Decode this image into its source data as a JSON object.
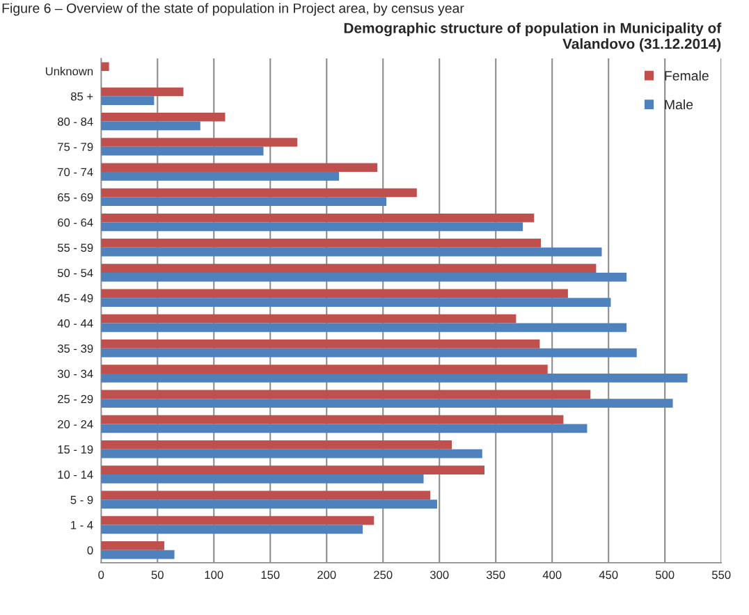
{
  "chart_data": {
    "type": "bar",
    "orientation": "horizontal",
    "title": "Demographic structure of population in Municipality of\nValandovo (31.12.2014)",
    "annotations": [
      "Figure 6 – Overview of the state of population in Project area, by census year"
    ],
    "categories": [
      "Unknown",
      "85 +",
      "80 - 84",
      "75 - 79",
      "70 - 74",
      "65 - 69",
      "60 - 64",
      "55 - 59",
      "50 - 54",
      "45 - 49",
      "40 - 44",
      "35 - 39",
      "30 - 34",
      "25 - 29",
      "20 - 24",
      "15 - 19",
      "10 - 14",
      "5 - 9",
      "1 - 4",
      "0"
    ],
    "series": [
      {
        "name": "Female",
        "color": "#c0504d",
        "values": [
          7,
          73,
          110,
          174,
          245,
          280,
          384,
          390,
          439,
          414,
          368,
          389,
          396,
          434,
          410,
          311,
          340,
          292,
          242,
          56
        ]
      },
      {
        "name": "Male",
        "color": "#4f81bd",
        "values": [
          null,
          47,
          88,
          144,
          211,
          253,
          374,
          444,
          466,
          452,
          466,
          475,
          520,
          507,
          431,
          338,
          286,
          298,
          232,
          65
        ]
      }
    ],
    "xlim": [
      0,
      550
    ],
    "xticks": [
      0,
      50,
      100,
      150,
      200,
      250,
      300,
      350,
      400,
      450,
      500,
      550
    ],
    "grid": "x",
    "legend": "top right"
  }
}
